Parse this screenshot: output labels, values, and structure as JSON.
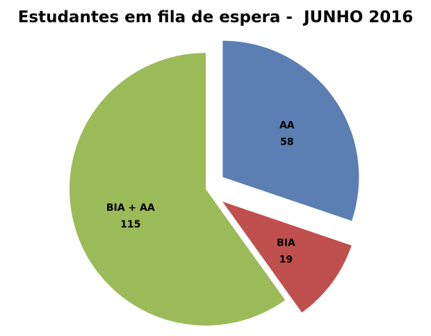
{
  "chart_data": {
    "type": "pie",
    "title": "Estudantes em fila de espera -  JUNHO 2016",
    "start_angle": "12 o'clock, clockwise",
    "slices": [
      {
        "label": "AA",
        "value": 58,
        "color": "#5B7FB3",
        "exploded": true
      },
      {
        "label": "BIA",
        "value": 19,
        "color": "#C0504D",
        "exploded": true
      },
      {
        "label": "BIA + AA",
        "value": 115,
        "color": "#9BBB59",
        "exploded": false
      }
    ],
    "legend": "none",
    "data_labels": "label and value inside slices"
  }
}
